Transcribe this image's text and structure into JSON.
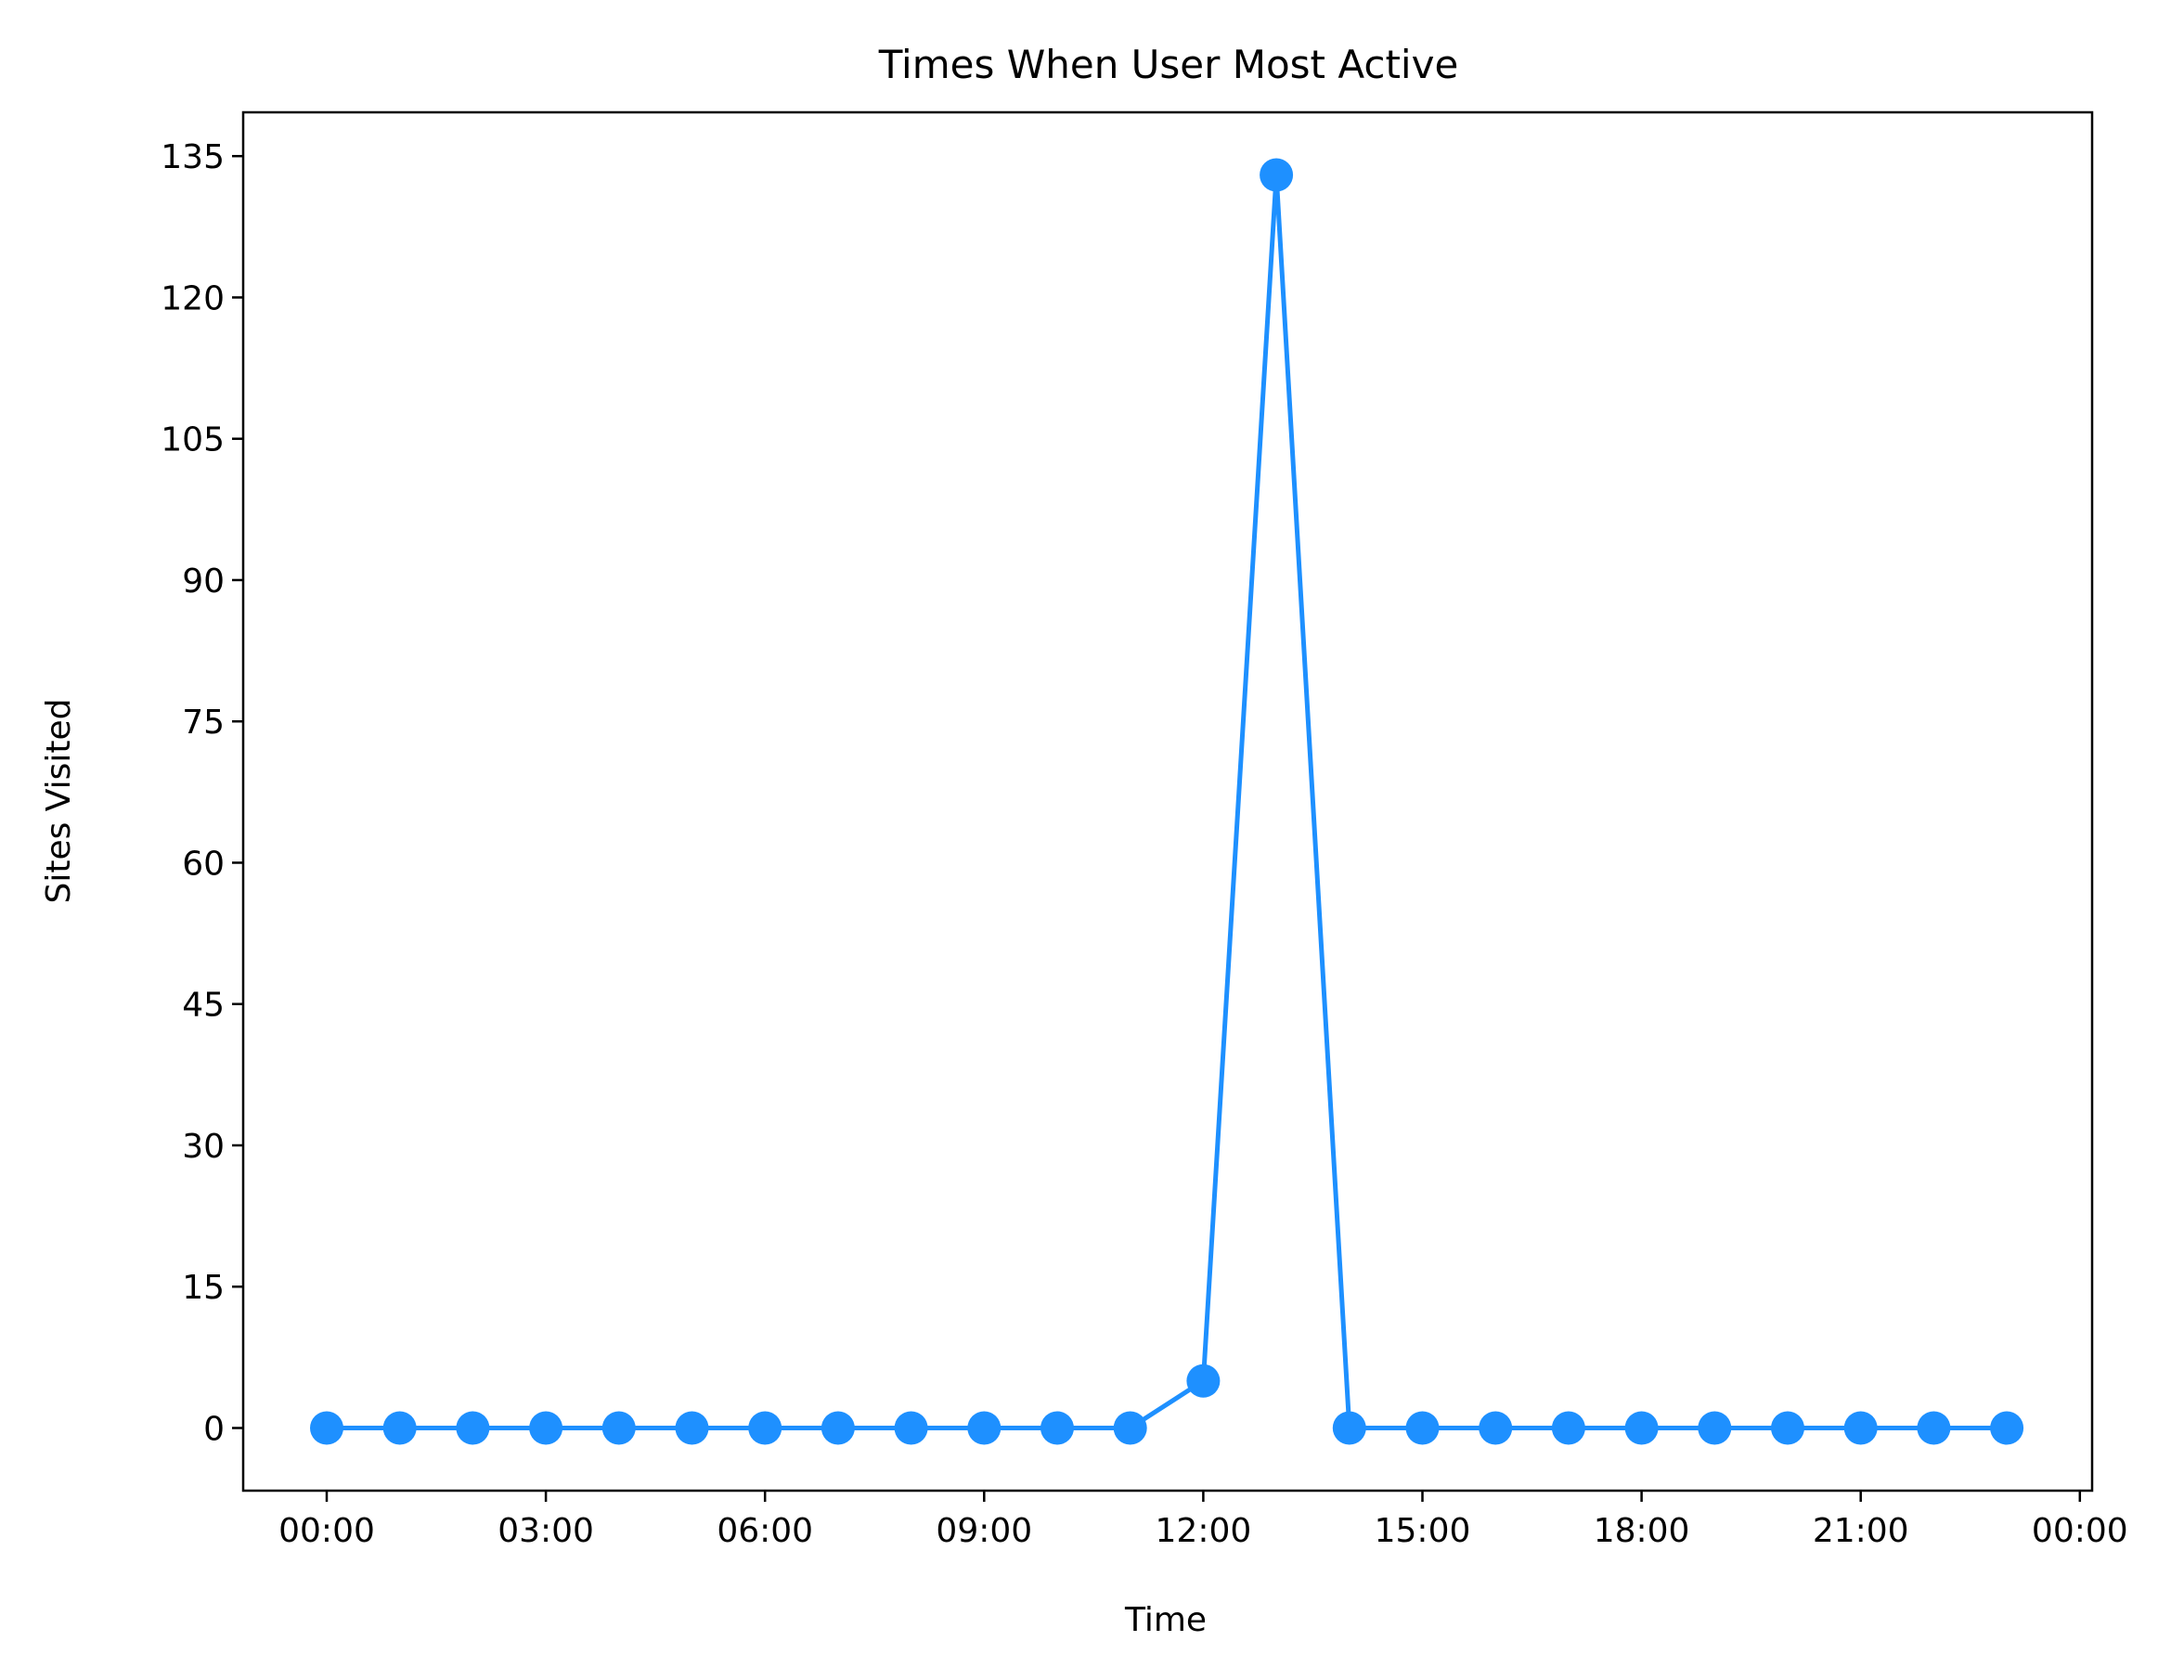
{
  "chart_data": {
    "type": "line",
    "title": "Times When User Most Active",
    "xlabel": "Time",
    "ylabel": "Sites Visited",
    "x": [
      "00:00",
      "01:00",
      "02:00",
      "03:00",
      "04:00",
      "05:00",
      "06:00",
      "07:00",
      "08:00",
      "09:00",
      "10:00",
      "11:00",
      "12:00",
      "13:00",
      "14:00",
      "15:00",
      "16:00",
      "17:00",
      "18:00",
      "19:00",
      "20:00",
      "21:00",
      "22:00",
      "23:00"
    ],
    "series": [
      {
        "values": [
          0,
          0,
          0,
          0,
          0,
          0,
          0,
          0,
          0,
          0,
          0,
          0,
          5,
          133,
          0,
          0,
          0,
          0,
          0,
          0,
          0,
          0,
          0,
          0
        ]
      }
    ],
    "xticks": [
      "00:00",
      "03:00",
      "06:00",
      "09:00",
      "12:00",
      "15:00",
      "18:00",
      "21:00",
      "00:00"
    ],
    "yticks": [
      0,
      15,
      30,
      45,
      60,
      75,
      90,
      105,
      120,
      135
    ],
    "ylim": [
      -6.65,
      139.65
    ],
    "grid": false,
    "legend": "none",
    "colors": {
      "line": "#1e90ff",
      "axes": "#000000"
    }
  }
}
